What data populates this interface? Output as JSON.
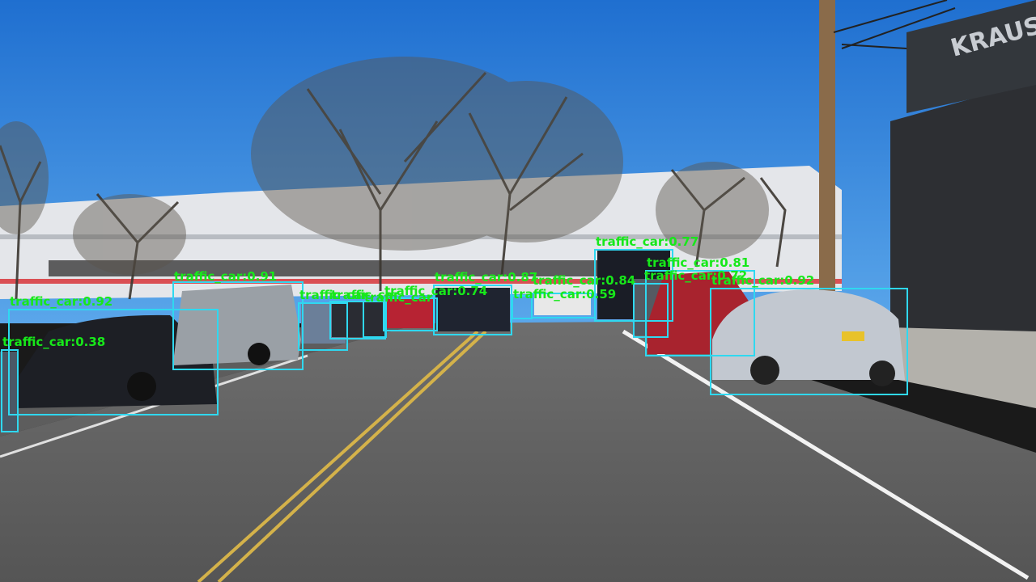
{
  "image": {
    "description_tag": "street-scene-with-object-detection",
    "sign_text": "KRAUS"
  },
  "colors": {
    "box": "#2fd8f0",
    "label": "#17e81a",
    "sky": "#2a7fd6"
  },
  "detections": [
    {
      "label": "traffic_car:0.77"
    },
    {
      "label": "traffic_car:0.81"
    },
    {
      "label": "traffic_car:0.72"
    },
    {
      "label": "traffic_car:0.92"
    },
    {
      "label": "traffic_car:0.84"
    },
    {
      "label": "traffic_car:0.59"
    },
    {
      "label": "traffic_car:0.87"
    },
    {
      "label": "traffic_car:0.74"
    },
    {
      "label": "traffic_car:0.91"
    },
    {
      "label": "traffic_car:0.92"
    },
    {
      "label": "traffic_car:0.38"
    },
    {
      "label": "traffic_car"
    },
    {
      "label": "traffic_car"
    },
    {
      "label": "traffic_car"
    }
  ]
}
